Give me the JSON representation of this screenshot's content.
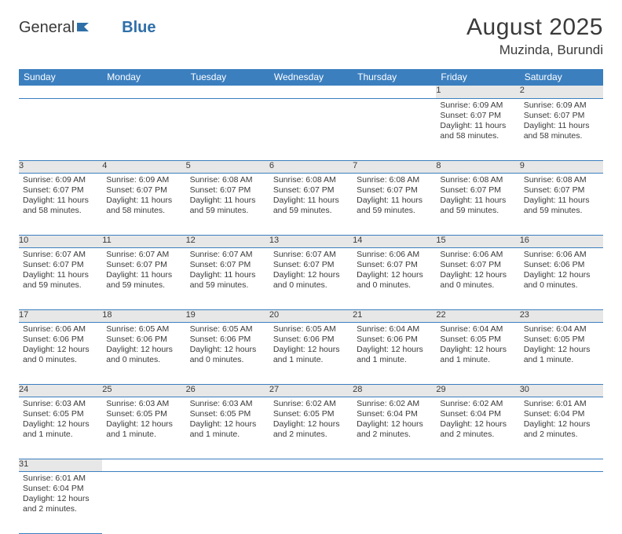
{
  "brand": {
    "part1": "General",
    "part2": "Blue"
  },
  "title": {
    "month_year": "August 2025",
    "location": "Muzinda, Burundi"
  },
  "colors": {
    "header_bg": "#3b7fbf",
    "header_text": "#ffffff",
    "daynum_bg": "#e7e7e7",
    "border": "#3b7fbf",
    "text": "#3a3a3a",
    "logo_blue": "#2f6fa8"
  },
  "weekdays": [
    "Sunday",
    "Monday",
    "Tuesday",
    "Wednesday",
    "Thursday",
    "Friday",
    "Saturday"
  ],
  "weeks": [
    [
      null,
      null,
      null,
      null,
      null,
      {
        "n": "1",
        "sr": "Sunrise: 6:09 AM",
        "ss": "Sunset: 6:07 PM",
        "d1": "Daylight: 11 hours",
        "d2": "and 58 minutes."
      },
      {
        "n": "2",
        "sr": "Sunrise: 6:09 AM",
        "ss": "Sunset: 6:07 PM",
        "d1": "Daylight: 11 hours",
        "d2": "and 58 minutes."
      }
    ],
    [
      {
        "n": "3",
        "sr": "Sunrise: 6:09 AM",
        "ss": "Sunset: 6:07 PM",
        "d1": "Daylight: 11 hours",
        "d2": "and 58 minutes."
      },
      {
        "n": "4",
        "sr": "Sunrise: 6:09 AM",
        "ss": "Sunset: 6:07 PM",
        "d1": "Daylight: 11 hours",
        "d2": "and 58 minutes."
      },
      {
        "n": "5",
        "sr": "Sunrise: 6:08 AM",
        "ss": "Sunset: 6:07 PM",
        "d1": "Daylight: 11 hours",
        "d2": "and 59 minutes."
      },
      {
        "n": "6",
        "sr": "Sunrise: 6:08 AM",
        "ss": "Sunset: 6:07 PM",
        "d1": "Daylight: 11 hours",
        "d2": "and 59 minutes."
      },
      {
        "n": "7",
        "sr": "Sunrise: 6:08 AM",
        "ss": "Sunset: 6:07 PM",
        "d1": "Daylight: 11 hours",
        "d2": "and 59 minutes."
      },
      {
        "n": "8",
        "sr": "Sunrise: 6:08 AM",
        "ss": "Sunset: 6:07 PM",
        "d1": "Daylight: 11 hours",
        "d2": "and 59 minutes."
      },
      {
        "n": "9",
        "sr": "Sunrise: 6:08 AM",
        "ss": "Sunset: 6:07 PM",
        "d1": "Daylight: 11 hours",
        "d2": "and 59 minutes."
      }
    ],
    [
      {
        "n": "10",
        "sr": "Sunrise: 6:07 AM",
        "ss": "Sunset: 6:07 PM",
        "d1": "Daylight: 11 hours",
        "d2": "and 59 minutes."
      },
      {
        "n": "11",
        "sr": "Sunrise: 6:07 AM",
        "ss": "Sunset: 6:07 PM",
        "d1": "Daylight: 11 hours",
        "d2": "and 59 minutes."
      },
      {
        "n": "12",
        "sr": "Sunrise: 6:07 AM",
        "ss": "Sunset: 6:07 PM",
        "d1": "Daylight: 11 hours",
        "d2": "and 59 minutes."
      },
      {
        "n": "13",
        "sr": "Sunrise: 6:07 AM",
        "ss": "Sunset: 6:07 PM",
        "d1": "Daylight: 12 hours",
        "d2": "and 0 minutes."
      },
      {
        "n": "14",
        "sr": "Sunrise: 6:06 AM",
        "ss": "Sunset: 6:07 PM",
        "d1": "Daylight: 12 hours",
        "d2": "and 0 minutes."
      },
      {
        "n": "15",
        "sr": "Sunrise: 6:06 AM",
        "ss": "Sunset: 6:07 PM",
        "d1": "Daylight: 12 hours",
        "d2": "and 0 minutes."
      },
      {
        "n": "16",
        "sr": "Sunrise: 6:06 AM",
        "ss": "Sunset: 6:06 PM",
        "d1": "Daylight: 12 hours",
        "d2": "and 0 minutes."
      }
    ],
    [
      {
        "n": "17",
        "sr": "Sunrise: 6:06 AM",
        "ss": "Sunset: 6:06 PM",
        "d1": "Daylight: 12 hours",
        "d2": "and 0 minutes."
      },
      {
        "n": "18",
        "sr": "Sunrise: 6:05 AM",
        "ss": "Sunset: 6:06 PM",
        "d1": "Daylight: 12 hours",
        "d2": "and 0 minutes."
      },
      {
        "n": "19",
        "sr": "Sunrise: 6:05 AM",
        "ss": "Sunset: 6:06 PM",
        "d1": "Daylight: 12 hours",
        "d2": "and 0 minutes."
      },
      {
        "n": "20",
        "sr": "Sunrise: 6:05 AM",
        "ss": "Sunset: 6:06 PM",
        "d1": "Daylight: 12 hours",
        "d2": "and 1 minute."
      },
      {
        "n": "21",
        "sr": "Sunrise: 6:04 AM",
        "ss": "Sunset: 6:06 PM",
        "d1": "Daylight: 12 hours",
        "d2": "and 1 minute."
      },
      {
        "n": "22",
        "sr": "Sunrise: 6:04 AM",
        "ss": "Sunset: 6:05 PM",
        "d1": "Daylight: 12 hours",
        "d2": "and 1 minute."
      },
      {
        "n": "23",
        "sr": "Sunrise: 6:04 AM",
        "ss": "Sunset: 6:05 PM",
        "d1": "Daylight: 12 hours",
        "d2": "and 1 minute."
      }
    ],
    [
      {
        "n": "24",
        "sr": "Sunrise: 6:03 AM",
        "ss": "Sunset: 6:05 PM",
        "d1": "Daylight: 12 hours",
        "d2": "and 1 minute."
      },
      {
        "n": "25",
        "sr": "Sunrise: 6:03 AM",
        "ss": "Sunset: 6:05 PM",
        "d1": "Daylight: 12 hours",
        "d2": "and 1 minute."
      },
      {
        "n": "26",
        "sr": "Sunrise: 6:03 AM",
        "ss": "Sunset: 6:05 PM",
        "d1": "Daylight: 12 hours",
        "d2": "and 1 minute."
      },
      {
        "n": "27",
        "sr": "Sunrise: 6:02 AM",
        "ss": "Sunset: 6:05 PM",
        "d1": "Daylight: 12 hours",
        "d2": "and 2 minutes."
      },
      {
        "n": "28",
        "sr": "Sunrise: 6:02 AM",
        "ss": "Sunset: 6:04 PM",
        "d1": "Daylight: 12 hours",
        "d2": "and 2 minutes."
      },
      {
        "n": "29",
        "sr": "Sunrise: 6:02 AM",
        "ss": "Sunset: 6:04 PM",
        "d1": "Daylight: 12 hours",
        "d2": "and 2 minutes."
      },
      {
        "n": "30",
        "sr": "Sunrise: 6:01 AM",
        "ss": "Sunset: 6:04 PM",
        "d1": "Daylight: 12 hours",
        "d2": "and 2 minutes."
      }
    ],
    [
      {
        "n": "31",
        "sr": "Sunrise: 6:01 AM",
        "ss": "Sunset: 6:04 PM",
        "d1": "Daylight: 12 hours",
        "d2": "and 2 minutes."
      },
      null,
      null,
      null,
      null,
      null,
      null
    ]
  ]
}
